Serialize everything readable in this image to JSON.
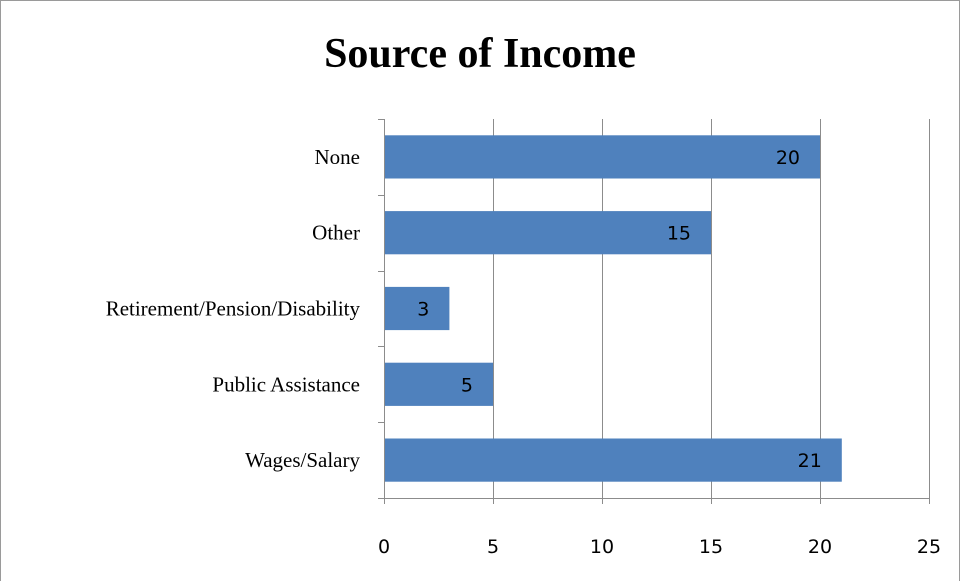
{
  "chart_data": {
    "type": "bar",
    "orientation": "horizontal",
    "title": "Source of Income",
    "categories": [
      "None",
      "Other",
      "Retirement/Pension/Disability",
      "Public Assistance",
      "Wages/Salary"
    ],
    "values": [
      20,
      15,
      3,
      5,
      21
    ],
    "xlim": [
      0,
      25
    ],
    "xticks": [
      "0",
      "5",
      "10",
      "15",
      "20",
      "25"
    ],
    "grid": true,
    "data_labels": true,
    "colors": {
      "bar": "#4f81bd",
      "grid": "#8c8c8c",
      "axis": "#8c8c8c"
    }
  }
}
